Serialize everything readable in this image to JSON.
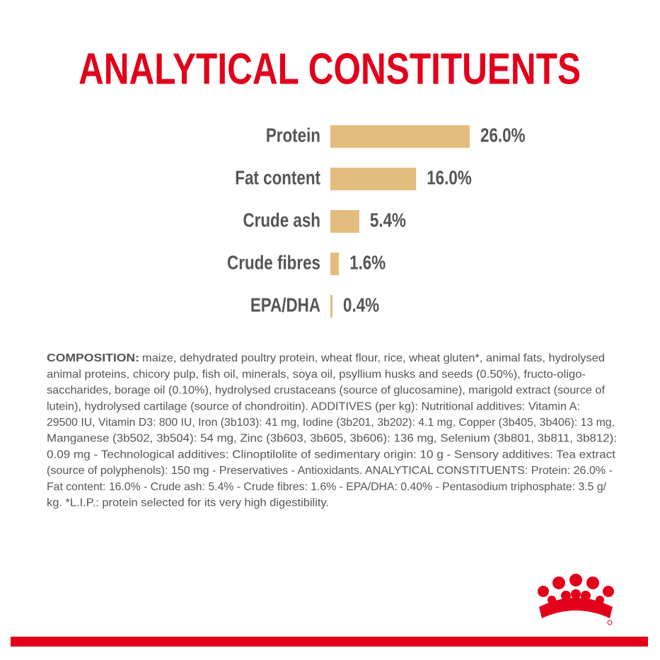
{
  "chart_data": {
    "type": "hbar",
    "title": "ANALYTICAL CONSTITUENTS",
    "categories": [
      "Protein",
      "Fat content",
      "Crude ash",
      "Crude fibres",
      "EPA/DHA"
    ],
    "values": [
      26.0,
      16.0,
      5.4,
      1.6,
      0.4
    ],
    "value_labels": [
      "26.0%",
      "16.0%",
      "5.4%",
      "1.6%",
      "0.4%"
    ],
    "color": "#e3bd7e"
  },
  "composition": {
    "label": "COMPOSITION:",
    "lines": [
      "maize, dehydrated poultry protein, wheat flour, rice, wheat gluten*, animal fats, hydrolysed",
      "animal proteins, chicory pulp, fish oil, minerals, soya oil, psyllium husks and seeds (0.50%), fructo-oligo-",
      "saccharides, borage oil (0.10%), hydrolysed crustaceans (source of glucosamine), marigold extract (source of",
      "lutein), hydrolysed cartilage (source of chondroitin). ADDITIVES (per kg): Nutritional additives: Vitamin A:",
      "29500 IU, Vitamin D3: 800 IU, Iron (3b103): 41 mg, Iodine (3b201, 3b202): 4.1 mg, Copper (3b405, 3b406): 13 mg,",
      "Manganese (3b502, 3b504): 54 mg, Zinc (3b603, 3b605, 3b606): 136 mg, Selenium (3b801, 3b811, 3b812):",
      "0.09 mg - Technological additives: Clinoptilolite of sedimentary origin: 10 g - Sensory additives: Tea extract",
      "(source of polyphenols): 150 mg - Preservatives - Antioxidants. ANALYTICAL CONSTITUENTS: Protein: 26.0% -",
      "Fat content: 16.0% - Crude ash: 5.4% - Crude fibres: 1.6% - EPA/DHA: 0.40% - Pentasodium triphosphate: 3.5 g/",
      "kg. *L.I.P.: protein selected for its very high digestibility."
    ]
  }
}
